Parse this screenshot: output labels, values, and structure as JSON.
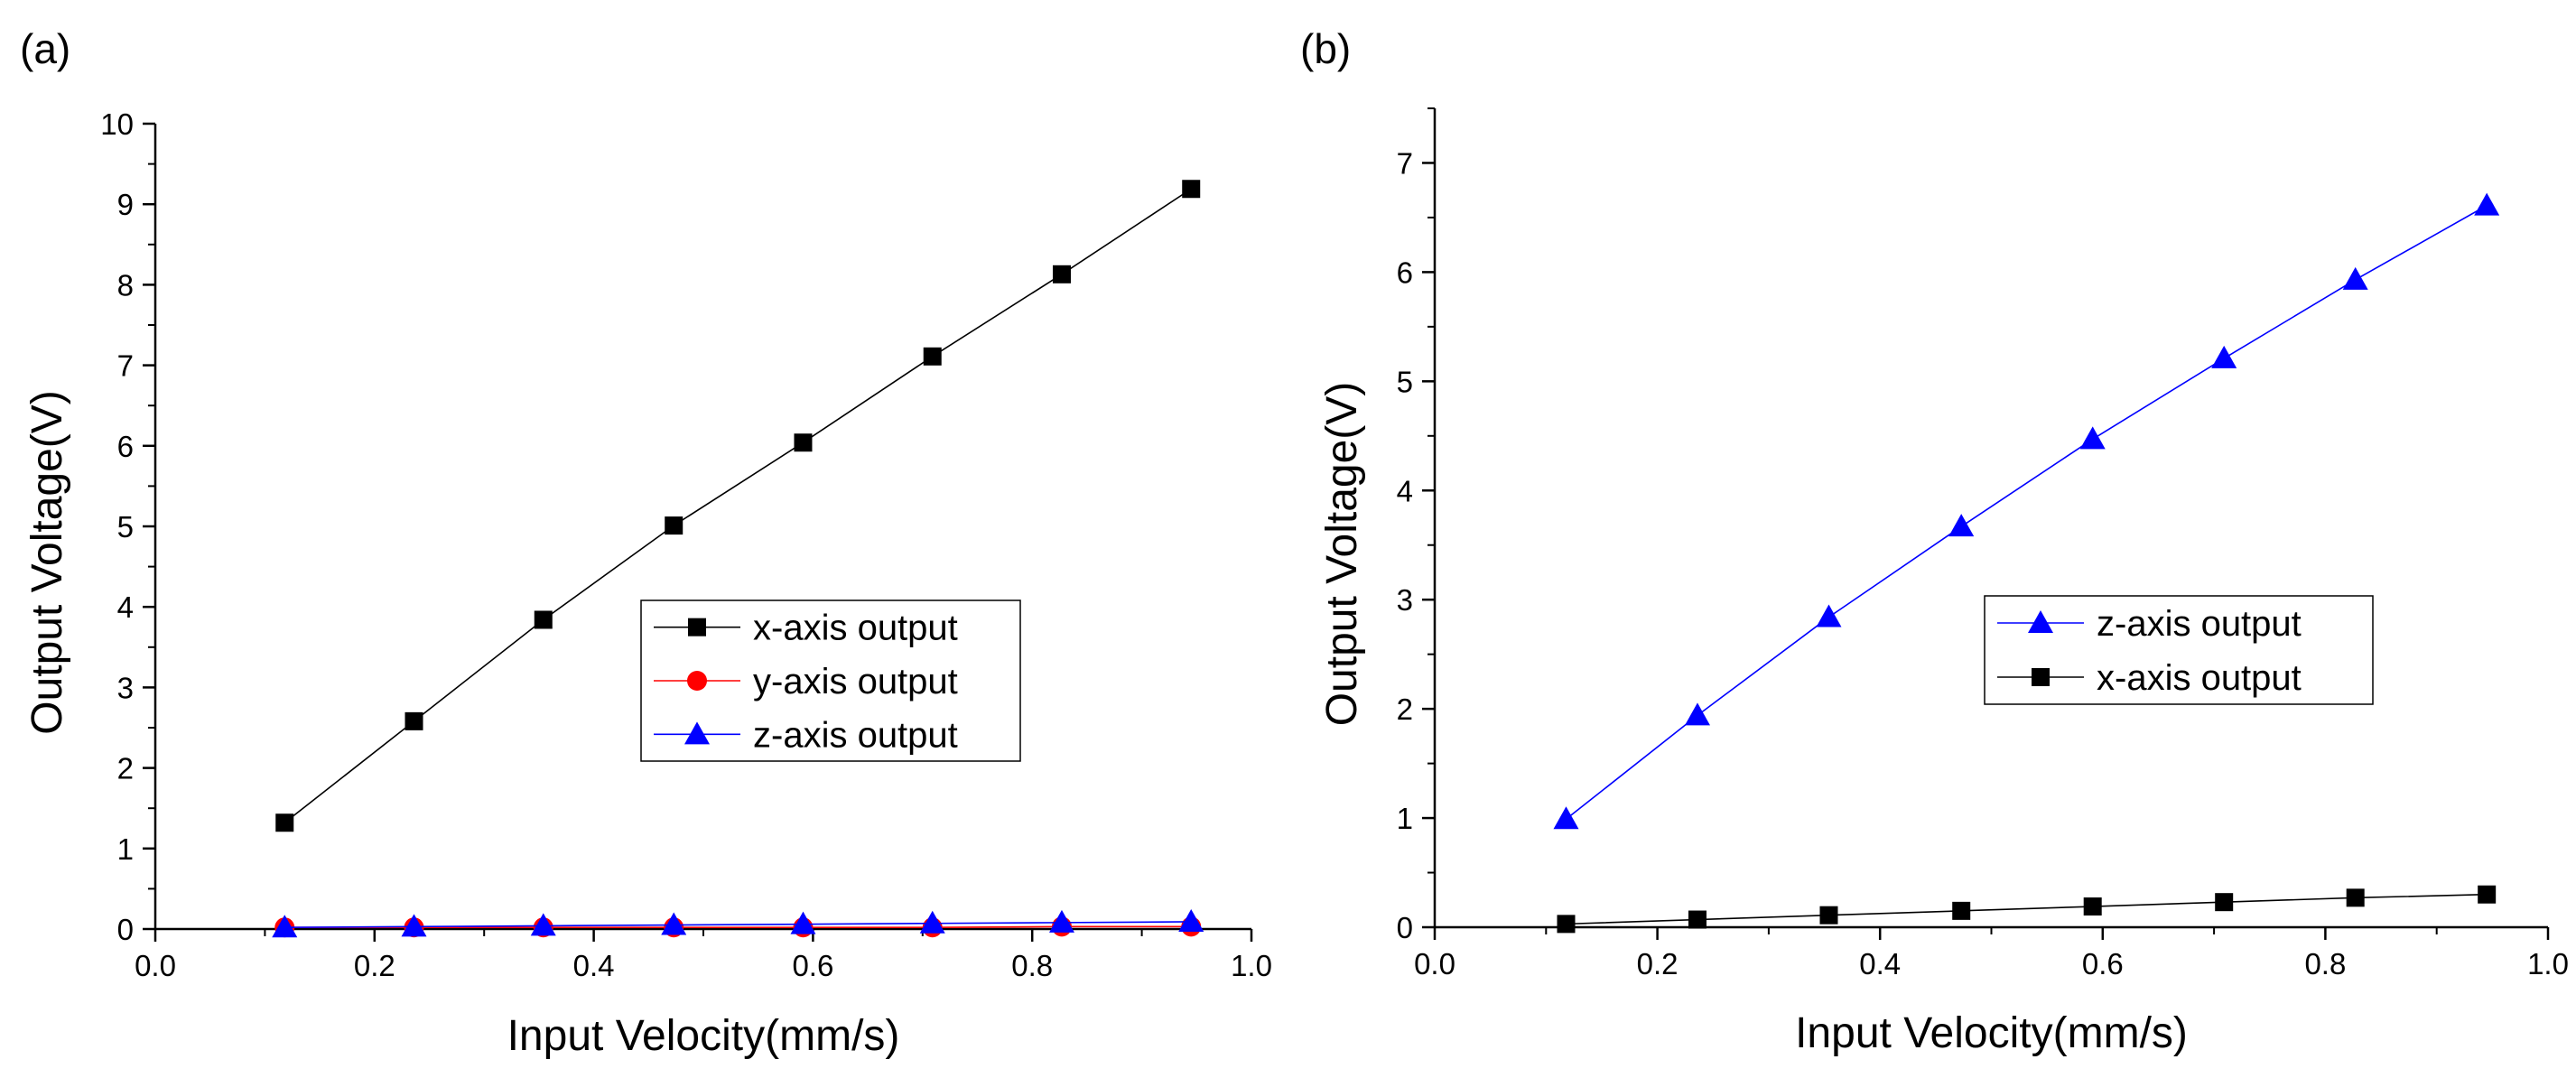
{
  "chart_data": [
    {
      "panel_label": "(a)",
      "type": "line",
      "xlabel": "Input Velocity(mm/s)",
      "ylabel": "Output Voltage(V)",
      "xlim": [
        0.0,
        1.0
      ],
      "ylim": [
        0,
        10
      ],
      "xticks": [
        "0.0",
        "0.2",
        "0.4",
        "0.6",
        "0.8",
        "1.0"
      ],
      "yticks": [
        "0",
        "1",
        "2",
        "3",
        "4",
        "5",
        "6",
        "7",
        "8",
        "9",
        "10"
      ],
      "legend_position": "center-right",
      "x": [
        0.118,
        0.236,
        0.354,
        0.473,
        0.591,
        0.709,
        0.827,
        0.945
      ],
      "series": [
        {
          "name": "x-axis output",
          "color": "#000000",
          "marker": "square",
          "values": [
            1.32,
            2.58,
            3.84,
            5.01,
            6.04,
            7.11,
            8.13,
            9.19
          ]
        },
        {
          "name": "y-axis output",
          "color": "#ff0000",
          "marker": "circle",
          "values": [
            0.02,
            0.02,
            0.02,
            0.02,
            0.02,
            0.02,
            0.03,
            0.03
          ]
        },
        {
          "name": "z-axis output",
          "color": "#0000ff",
          "marker": "triangle",
          "values": [
            0.02,
            0.03,
            0.04,
            0.05,
            0.06,
            0.07,
            0.08,
            0.09
          ]
        }
      ]
    },
    {
      "panel_label": "(b)",
      "type": "line",
      "xlabel": "Input Velocity(mm/s)",
      "ylabel": "Output Voltage(V)",
      "xlim": [
        0.0,
        1.0
      ],
      "ylim": [
        0,
        7.5
      ],
      "xticks": [
        "0.0",
        "0.2",
        "0.4",
        "0.6",
        "0.8",
        "1.0"
      ],
      "yticks": [
        "0",
        "1",
        "2",
        "3",
        "4",
        "5",
        "6",
        "7"
      ],
      "legend_position": "center-right",
      "x": [
        0.118,
        0.236,
        0.354,
        0.473,
        0.591,
        0.709,
        0.827,
        0.945
      ],
      "series": [
        {
          "name": "z-axis output",
          "color": "#0000ff",
          "marker": "triangle",
          "values": [
            0.99,
            1.94,
            2.84,
            3.67,
            4.47,
            5.21,
            5.93,
            6.61
          ]
        },
        {
          "name": "x-axis output",
          "color": "#000000",
          "marker": "square",
          "values": [
            0.03,
            0.07,
            0.11,
            0.15,
            0.19,
            0.23,
            0.27,
            0.3
          ]
        }
      ]
    }
  ]
}
